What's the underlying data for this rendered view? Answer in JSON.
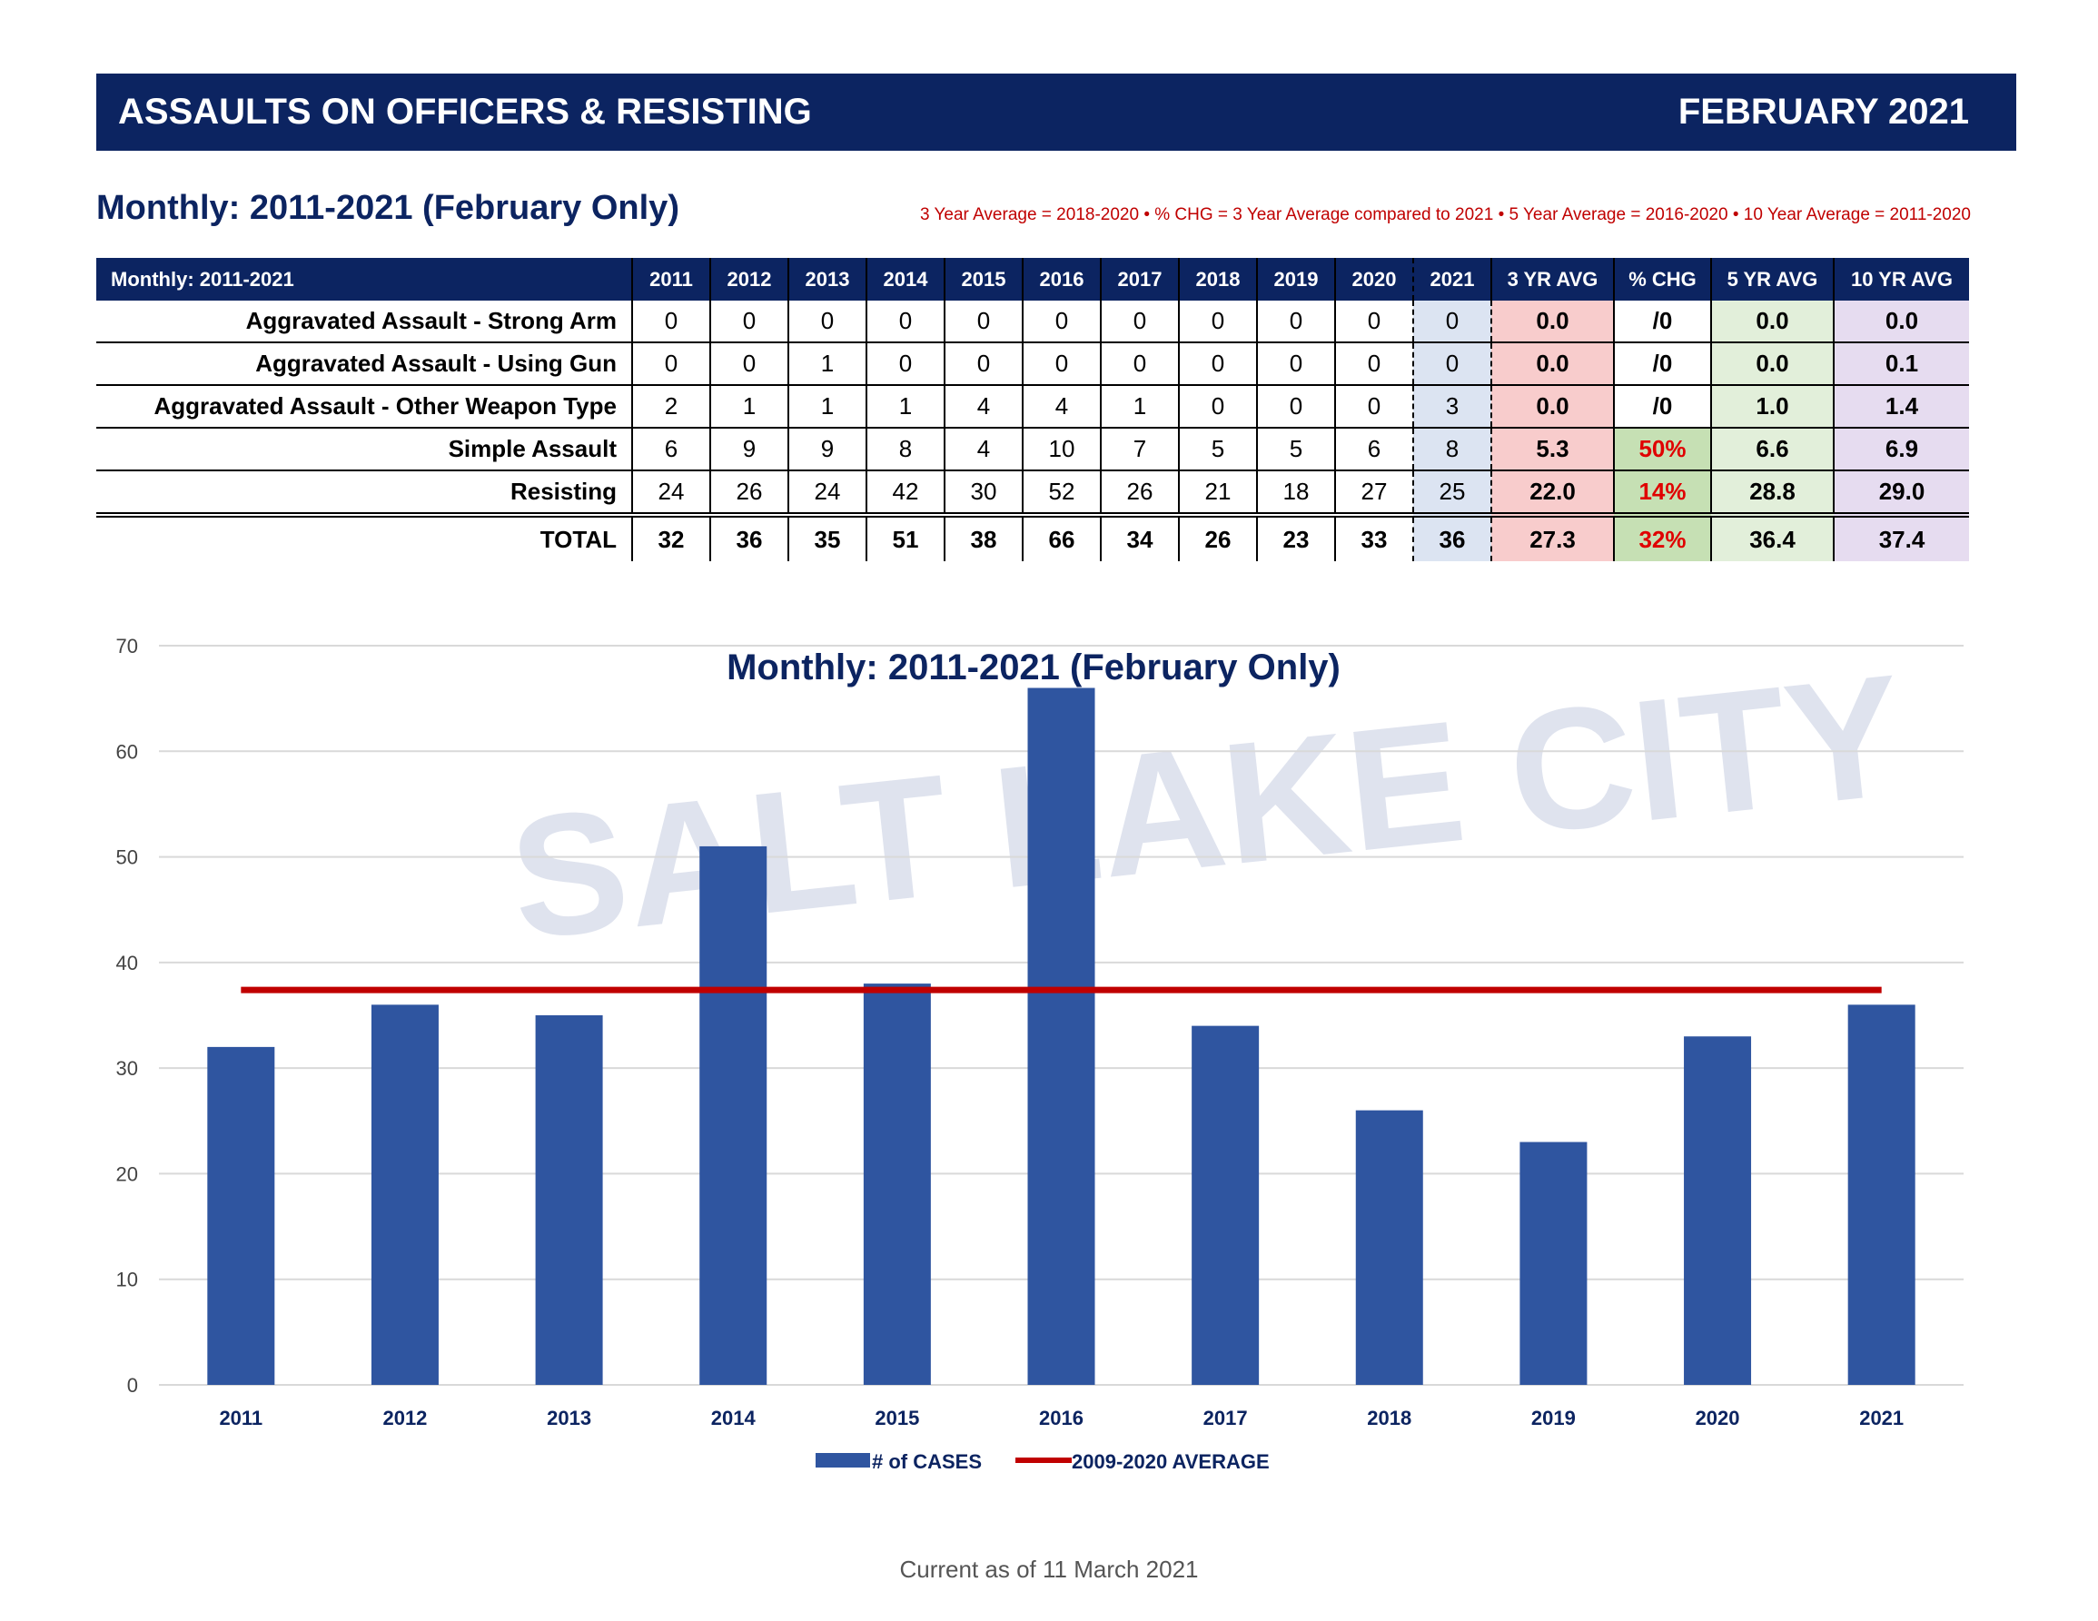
{
  "header": {
    "title": "ASSAULTS ON OFFICERS & RESISTING",
    "period": "FEBRUARY 2021"
  },
  "subtitle": "Monthly:  2011-2021 (February Only)",
  "note": "3 Year Average = 2018-2020 • % CHG = 3 Year Average compared to 2021 • 5 Year Average = 2016-2020 • 10 Year Average = 2011-2020",
  "watermark": "SALT LAKE CITY",
  "table": {
    "corner": "Monthly: 2011-2021",
    "columns": [
      "2011",
      "2012",
      "2013",
      "2014",
      "2015",
      "2016",
      "2017",
      "2018",
      "2019",
      "2020",
      "2021",
      "3 YR AVG",
      "% CHG",
      "5 YR AVG",
      "10 YR AVG"
    ],
    "rows": [
      {
        "label": "Aggravated Assault - Strong Arm",
        "values": [
          "0",
          "0",
          "0",
          "0",
          "0",
          "0",
          "0",
          "0",
          "0",
          "0",
          "0",
          "0.0",
          "/0",
          "0.0",
          "0.0"
        ]
      },
      {
        "label": "Aggravated Assault - Using Gun",
        "values": [
          "0",
          "0",
          "1",
          "0",
          "0",
          "0",
          "0",
          "0",
          "0",
          "0",
          "0",
          "0.0",
          "/0",
          "0.0",
          "0.1"
        ]
      },
      {
        "label": "Aggravated Assault - Other Weapon Type",
        "values": [
          "2",
          "1",
          "1",
          "1",
          "4",
          "4",
          "1",
          "0",
          "0",
          "0",
          "3",
          "0.0",
          "/0",
          "1.0",
          "1.4"
        ]
      },
      {
        "label": "Simple Assault",
        "values": [
          "6",
          "9",
          "9",
          "8",
          "4",
          "10",
          "7",
          "5",
          "5",
          "6",
          "8",
          "5.3",
          "50%",
          "6.6",
          "6.9"
        ]
      },
      {
        "label": "Resisting",
        "values": [
          "24",
          "26",
          "24",
          "42",
          "30",
          "52",
          "26",
          "21",
          "18",
          "27",
          "25",
          "22.0",
          "14%",
          "28.8",
          "29.0"
        ]
      }
    ],
    "total": {
      "label": "TOTAL",
      "values": [
        "32",
        "36",
        "35",
        "51",
        "38",
        "66",
        "34",
        "26",
        "23",
        "33",
        "36",
        "27.3",
        "32%",
        "36.4",
        "37.4"
      ]
    }
  },
  "chart_data": {
    "type": "bar",
    "title": "Monthly: 2011-2021 (February Only)",
    "categories": [
      "2011",
      "2012",
      "2013",
      "2014",
      "2015",
      "2016",
      "2017",
      "2018",
      "2019",
      "2020",
      "2021"
    ],
    "series": [
      {
        "name": "# of CASES",
        "type": "bar",
        "values": [
          32,
          36,
          35,
          51,
          38,
          66,
          34,
          26,
          23,
          33,
          36
        ],
        "color": "#2f55a0"
      },
      {
        "name": "2009-2020 AVERAGE",
        "type": "line",
        "values": [
          37.4,
          37.4,
          37.4,
          37.4,
          37.4,
          37.4,
          37.4,
          37.4,
          37.4,
          37.4,
          37.4
        ],
        "color": "#c00000"
      }
    ],
    "ylim": [
      0,
      70
    ],
    "yticks": [
      0,
      10,
      20,
      30,
      40,
      50,
      60,
      70
    ],
    "grid": true,
    "legend": "bottom"
  },
  "footer": "Current as of 11 March 2021"
}
